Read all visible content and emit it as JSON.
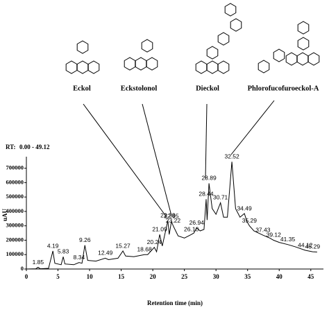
{
  "chart_data": {
    "type": "line",
    "rt_label": "RT:",
    "rt_range": "0.00 - 49.12",
    "rt_color": "#1f3a93",
    "xlabel": "Retention time (min)",
    "ylabel": "uAU",
    "compounds": [
      "Eckol",
      "Eckstolonol",
      "Dieckol",
      "Phlorofucofuroeckol-A"
    ],
    "x": [
      0,
      1.5,
      1.85,
      2.2,
      3.5,
      4.19,
      4.5,
      5.5,
      5.83,
      6.1,
      7.5,
      8.34,
      8.8,
      9.26,
      9.7,
      11,
      12.49,
      13,
      14.5,
      15.27,
      15.7,
      17,
      18.68,
      19.2,
      20.24,
      20.6,
      21.09,
      21.5,
      22.38,
      22.6,
      22.95,
      23.22,
      24,
      25,
      26.1,
      26.5,
      26.94,
      27.5,
      28.1,
      28.44,
      28.6,
      28.89,
      29.4,
      30,
      30.71,
      31.2,
      31.8,
      32.52,
      33.1,
      33.8,
      34.49,
      34.9,
      35.29,
      36,
      37.43,
      38.5,
      39.12,
      40,
      41.35,
      42.5,
      44.12,
      45.29,
      46
    ],
    "series": [
      {
        "color": "#000000",
        "values": [
          0,
          2000,
          12000,
          2000,
          5000,
          125000,
          40000,
          30000,
          85000,
          35000,
          30000,
          45000,
          40000,
          165000,
          60000,
          55000,
          75000,
          65000,
          75000,
          125000,
          90000,
          85000,
          100000,
          100000,
          150000,
          120000,
          240000,
          160000,
          335000,
          240000,
          330000,
          300000,
          230000,
          215000,
          240000,
          250000,
          285000,
          265000,
          275000,
          485000,
          340000,
          595000,
          420000,
          380000,
          460000,
          360000,
          360000,
          745000,
          420000,
          360000,
          385000,
          330000,
          300000,
          265000,
          235000,
          215000,
          200000,
          185000,
          170000,
          155000,
          130000,
          120000,
          118000
        ]
      }
    ],
    "peaks": {
      "x": [
        1.85,
        4.19,
        5.83,
        8.34,
        9.26,
        12.49,
        15.27,
        18.68,
        20.24,
        21.09,
        22.38,
        22.95,
        23.22,
        26.1,
        26.94,
        28.44,
        28.89,
        30.71,
        32.52,
        34.49,
        35.29,
        37.43,
        39.12,
        41.35,
        44.12,
        45.29
      ],
      "y": [
        12000,
        125000,
        85000,
        45000,
        165000,
        75000,
        125000,
        100000,
        150000,
        240000,
        335000,
        330000,
        300000,
        240000,
        285000,
        485000,
        595000,
        460000,
        745000,
        385000,
        300000,
        235000,
        200000,
        170000,
        130000,
        120000
      ],
      "value_labels": [
        "1.85",
        "4.19",
        "5.83",
        "8.34",
        "9.26",
        "12.49",
        "15.27",
        "18.68",
        "20.24",
        "21.09",
        "22.38",
        "22.95",
        "23.22",
        "26.10",
        "26.94",
        "28.44",
        "28.89",
        "30.71",
        "32.52",
        "34.49",
        "35.29",
        "37.43",
        "39.12",
        "41.35",
        "44.12",
        "45.29"
      ]
    },
    "xlim": [
      0,
      47
    ],
    "xticks": [
      0,
      5,
      10,
      15,
      20,
      25,
      30,
      35,
      40,
      45
    ],
    "ylim": [
      0,
      780000
    ],
    "yticks": [
      0,
      100000,
      200000,
      300000,
      400000,
      500000,
      600000,
      700000
    ]
  }
}
